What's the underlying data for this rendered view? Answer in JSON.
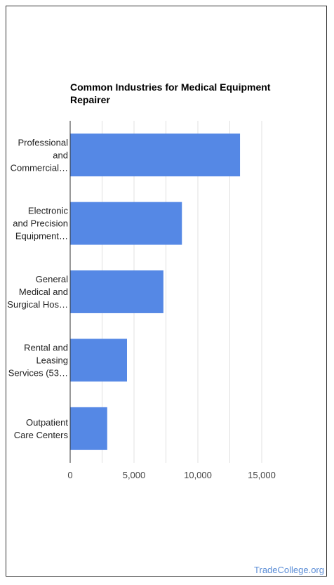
{
  "chart_data": {
    "type": "bar",
    "orientation": "horizontal",
    "title": "Common Industries for Medical Equipment Repairer",
    "xlabel": "",
    "ylabel": "",
    "categories": [
      [
        "Professional",
        "and",
        "Commercial…"
      ],
      [
        "Electronic",
        "and Precision",
        "Equipment…"
      ],
      [
        "General",
        "Medical and",
        "Surgical Hos…"
      ],
      [
        "Rental and",
        "Leasing",
        "Services (53…"
      ],
      [
        "Outpatient",
        "Care Centers"
      ]
    ],
    "values": [
      13300,
      8750,
      7300,
      4450,
      2900
    ],
    "xlim": [
      0,
      16000
    ],
    "ticks": [
      0,
      5000,
      10000,
      15000
    ],
    "tick_labels": [
      "0",
      "5,000",
      "10,000",
      "15,000"
    ],
    "grid": true,
    "bar_color": "#5588e5"
  },
  "credit": "TradeCollege.org"
}
